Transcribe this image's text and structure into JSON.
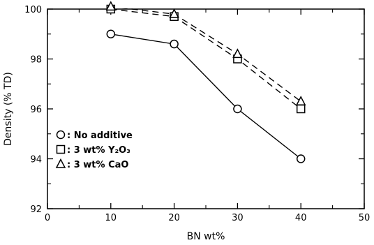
{
  "chart_data": {
    "type": "line",
    "xlabel": "BN wt%",
    "ylabel": "Density (% TD)",
    "xlim": [
      0,
      50
    ],
    "ylim": [
      92,
      100
    ],
    "x_ticks": [
      0,
      10,
      20,
      30,
      40,
      50
    ],
    "y_ticks": [
      92,
      94,
      96,
      98,
      100
    ],
    "grid": false,
    "legend_position": "lower-left",
    "series": [
      {
        "name": "No additive",
        "marker": "circle",
        "line_style": "solid",
        "x": [
          10,
          20,
          30,
          40
        ],
        "values": [
          99.0,
          98.6,
          96.0,
          94.0
        ]
      },
      {
        "name": "3 wt% Y₂O₃",
        "marker": "square",
        "line_style": "dashed",
        "x": [
          10,
          20,
          30,
          40
        ],
        "values": [
          100.0,
          99.7,
          98.0,
          96.0
        ]
      },
      {
        "name": "3 wt% CaO",
        "marker": "triangle",
        "line_style": "dashed",
        "x": [
          10,
          20,
          30,
          40
        ],
        "values": [
          100.1,
          99.8,
          98.2,
          96.3
        ]
      }
    ]
  }
}
